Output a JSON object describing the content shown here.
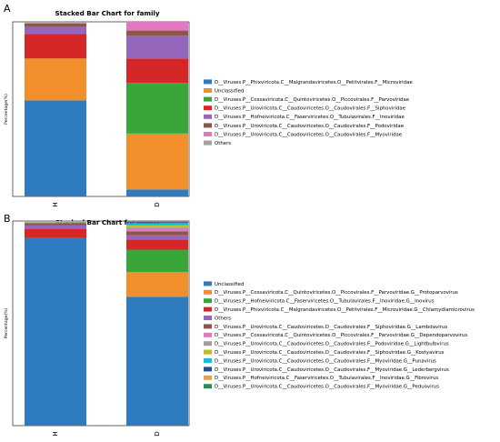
{
  "chart_data": [
    {
      "type": "bar",
      "panel_letter": "A",
      "title": "Stacked Bar Chart for family",
      "xlabel": "",
      "ylabel": "Percentage(%)",
      "ylim": [
        0,
        100
      ],
      "categories": [
        "H",
        "D"
      ],
      "legend_position": "right",
      "series": [
        {
          "name": "D__Viruses.P__Phixviricota.C__Malgrandaviricetes.O__Petitvirales.F__Microviridae",
          "color": "#2f7bbf",
          "values": [
            55,
            4
          ]
        },
        {
          "name": "Unclassified",
          "color": "#f28e2b",
          "values": [
            24,
            32
          ]
        },
        {
          "name": "D__Viruses.P__Cossaviricota.C__Quintoviricetes.O__Piccovirales.F__Parvoviridae",
          "color": "#3aa63a",
          "values": [
            0,
            29
          ]
        },
        {
          "name": "D__Viruses.P__Uroviricota.C__Caudoviricetes.O__Caudovirales.F__Siphoviridae",
          "color": "#d62728",
          "values": [
            14,
            14
          ]
        },
        {
          "name": "D__Viruses.P__Hofneiviricota.C__Faserviricetes.O__Tubulavirales.F__Inoviridae",
          "color": "#9467bd",
          "values": [
            4,
            13
          ]
        },
        {
          "name": "D__Viruses.P__Uroviricota.C__Caudoviricetes.O__Caudovirales.F__Podoviridae",
          "color": "#8c564b",
          "values": [
            2,
            3
          ]
        },
        {
          "name": "D__Viruses.P__Uroviricota.C__Caudoviricetes.O__Caudovirales.F__Myoviridae",
          "color": "#e377c2",
          "values": [
            0.5,
            5
          ]
        },
        {
          "name": "Others",
          "color": "#a0a0a0",
          "values": [
            0.5,
            0
          ]
        }
      ]
    },
    {
      "type": "bar",
      "panel_letter": "B",
      "title": "Stacked Bar Chart for genus",
      "xlabel": "",
      "ylabel": "Percentage(%)",
      "ylim": [
        0,
        100
      ],
      "categories": [
        "H",
        "D"
      ],
      "legend_position": "right",
      "series": [
        {
          "name": "Unclassified",
          "color": "#2f7bbf",
          "values": [
            92,
            63
          ]
        },
        {
          "name": "D__Viruses.P__Cossaviricota.C__Quintoviricetes.O__Piccovirales.F__Parvoviridae.G__Protoparvovirus",
          "color": "#f28e2b",
          "values": [
            0,
            12
          ]
        },
        {
          "name": "D__Viruses.P__Hofneiviricota.C__Faserviricetes.O__Tubulavirales.F__Inoviridae.G__Inovirus",
          "color": "#3aa63a",
          "values": [
            0,
            11
          ]
        },
        {
          "name": "D__Viruses.P__Phixviricota.C__Malgrandaviricetes.O__Petitvirales.F__Microviridae.G__Chlamydiamicrovirus",
          "color": "#d62728",
          "values": [
            4,
            5
          ]
        },
        {
          "name": "Others",
          "color": "#9467bd",
          "values": [
            2,
            2
          ]
        },
        {
          "name": "D__Viruses.P__Uroviricota.C__Caudoviricetes.O__Caudovirales.F__Siphoviridae.G__Lambdavirus",
          "color": "#8c564b",
          "values": [
            1,
            2
          ]
        },
        {
          "name": "D__Viruses.P__Cossaviricota.C__Quintoviricetes.O__Piccovirales.F__Parvoviridae.G__Dependoparvovirus",
          "color": "#e377c2",
          "values": [
            0,
            1
          ]
        },
        {
          "name": "D__Viruses.P__Uroviricota.C__Caudoviricetes.O__Caudovirales.F__Podoviridae.G__Lightbulbvirus",
          "color": "#a0a0a0",
          "values": [
            0.5,
            1
          ]
        },
        {
          "name": "D__Viruses.P__Uroviricota.C__Caudoviricetes.O__Caudovirales.F__Siphoviridae.G__Kostyavirus",
          "color": "#bcbd22",
          "values": [
            0.5,
            1
          ]
        },
        {
          "name": "D__Viruses.P__Uroviricota.C__Caudoviricetes.O__Caudovirales.F__Myoviridae.G__Punavirus",
          "color": "#17becf",
          "values": [
            0,
            1
          ]
        },
        {
          "name": "D__Viruses.P__Uroviricota.C__Caudoviricetes.O__Caudovirales.F__Myoviridae.G__Lederbergvirus",
          "color": "#1f4e9b",
          "values": [
            0,
            0.5
          ]
        },
        {
          "name": "D__Viruses.P__Hofneiviricota.C__Faserviricetes.O__Tubulavirales.F__Inoviridae.G__Fibrovirus",
          "color": "#e8a33d",
          "values": [
            0,
            0.3
          ]
        },
        {
          "name": "D__Viruses.P__Uroviricota.C__Caudoviricetes.O__Caudovirales.F__Myoviridae.G__Peduovirus",
          "color": "#2e8b57",
          "values": [
            0,
            0.2
          ]
        }
      ]
    }
  ]
}
